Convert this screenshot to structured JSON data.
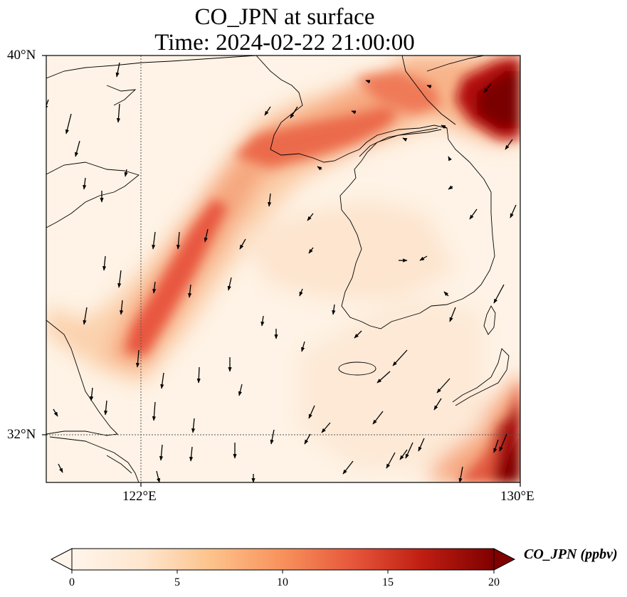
{
  "title": {
    "line1": "CO_JPN at surface",
    "line2": "Time: 2024-02-22 21:00:00"
  },
  "axes": {
    "lat_labels": [
      "40°N",
      "32°N"
    ],
    "lon_labels": [
      "122°E",
      "130°E"
    ],
    "lat_range": [
      31.2,
      40.0
    ],
    "lon_range": [
      120.0,
      130.0
    ],
    "gridlines": "dotted, at 122°E and 32°N"
  },
  "colorbar": {
    "label": "CO_JPN (ppbv)",
    "ticks": [
      "0",
      "5",
      "10",
      "15",
      "20"
    ],
    "range": [
      0,
      20
    ],
    "extend": "both",
    "colormap": [
      "#fff5eb",
      "#fdd9b4",
      "#fda762",
      "#f3701b",
      "#d94801",
      "#a63603",
      "#7f2704"
    ]
  },
  "colors": {
    "coastline": "#000000",
    "wind_vector": "#000000",
    "field_low": "#fef0e0",
    "field_mid": "#f4a582",
    "field_high": "#7a0000"
  }
}
